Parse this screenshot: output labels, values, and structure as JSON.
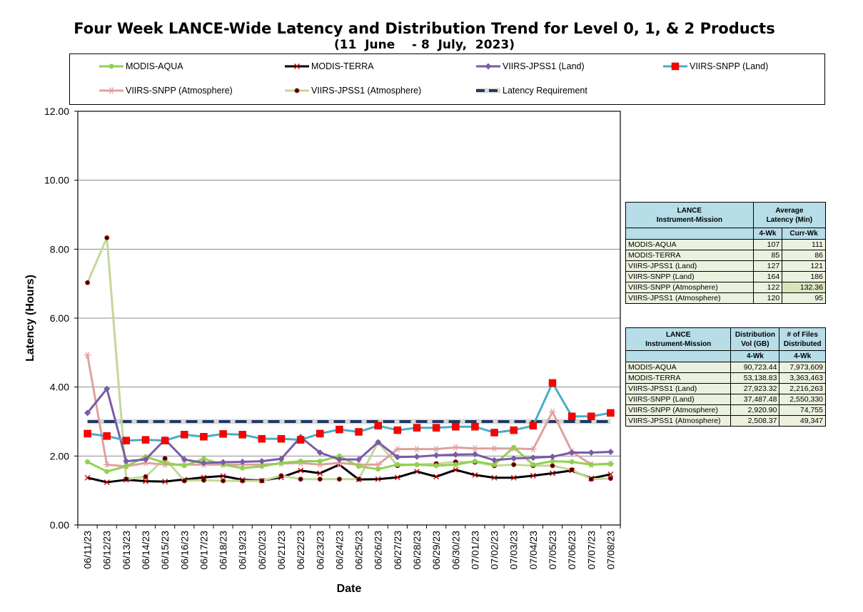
{
  "title": "Four Week LANCE-Wide Latency and Distribution Trend for Level 0, 1, & 2 Products",
  "subtitle": "(11  June    - 8  July,  2023)",
  "chart_data": {
    "type": "line",
    "xlabel": "Date",
    "ylabel": "Latency (Hours)",
    "ylim": [
      0,
      12
    ],
    "yticks": [
      "0.00",
      "2.00",
      "4.00",
      "6.00",
      "8.00",
      "10.00",
      "12.00"
    ],
    "grid": true,
    "legend_position": "top",
    "categories": [
      "06/11/23",
      "06/12/23",
      "06/13/23",
      "06/14/23",
      "06/15/23",
      "06/16/23",
      "06/17/23",
      "06/18/23",
      "06/19/23",
      "06/20/23",
      "06/21/23",
      "06/22/23",
      "06/23/23",
      "06/24/23",
      "06/25/23",
      "06/26/23",
      "06/27/23",
      "06/28/23",
      "06/29/23",
      "06/30/23",
      "07/01/23",
      "07/02/23",
      "07/03/23",
      "07/04/23",
      "07/05/23",
      "07/06/23",
      "07/07/23",
      "07/08/23"
    ],
    "series": [
      {
        "name": "MODIS-AQUA",
        "color": "#92d050",
        "marker": "circle",
        "values": [
          1.83,
          1.55,
          1.7,
          1.98,
          1.8,
          1.72,
          1.92,
          1.75,
          1.65,
          1.7,
          1.8,
          1.85,
          1.85,
          2.0,
          1.7,
          1.62,
          1.75,
          1.75,
          1.72,
          1.75,
          1.85,
          1.75,
          2.25,
          1.75,
          1.85,
          1.83,
          1.75,
          1.77
        ]
      },
      {
        "name": "MODIS-TERRA",
        "color": "#000000",
        "marker": "x",
        "values": [
          1.37,
          1.24,
          1.31,
          1.27,
          1.26,
          1.32,
          1.38,
          1.42,
          1.31,
          1.29,
          1.38,
          1.58,
          1.5,
          1.75,
          1.32,
          1.33,
          1.38,
          1.55,
          1.4,
          1.6,
          1.45,
          1.37,
          1.37,
          1.43,
          1.5,
          1.58,
          1.35,
          1.47
        ]
      },
      {
        "name": "VIIRS-JPSS1 (Land)",
        "color": "#7a5ba6",
        "marker": "diamond",
        "values": [
          3.25,
          3.95,
          1.85,
          1.9,
          2.48,
          1.9,
          1.8,
          1.82,
          1.83,
          1.85,
          1.92,
          2.55,
          2.1,
          1.9,
          1.9,
          2.4,
          1.97,
          1.98,
          2.02,
          2.04,
          2.05,
          1.88,
          1.93,
          1.95,
          1.98,
          2.1,
          2.1,
          2.12
        ]
      },
      {
        "name": "VIIRS-SNPP (Land)",
        "color": "#4bacc6",
        "marker": "square",
        "values": [
          2.65,
          2.58,
          2.45,
          2.47,
          2.45,
          2.62,
          2.56,
          2.64,
          2.62,
          2.5,
          2.5,
          2.47,
          2.65,
          2.77,
          2.7,
          2.88,
          2.75,
          2.82,
          2.82,
          2.85,
          2.85,
          2.68,
          2.75,
          2.88,
          4.12,
          3.15,
          3.15,
          3.25
        ]
      },
      {
        "name": "VIIRS-SNPP (Atmosphere)",
        "color": "#e0a0a0",
        "marker": "asterisk",
        "values": [
          4.93,
          1.75,
          1.7,
          1.8,
          1.75,
          1.75,
          1.75,
          1.75,
          1.75,
          1.75,
          1.78,
          1.8,
          1.75,
          1.8,
          1.75,
          1.75,
          2.2,
          2.2,
          2.2,
          2.25,
          2.22,
          2.22,
          2.22,
          2.2,
          3.28,
          2.13,
          1.75,
          1.78
        ]
      },
      {
        "name": "VIIRS-JPSS1 (Atmosphere)",
        "color": "#c4d79b",
        "marker": "dot",
        "values": [
          7.03,
          8.33,
          1.33,
          1.4,
          1.93,
          1.28,
          1.3,
          1.28,
          1.28,
          1.28,
          1.43,
          1.33,
          1.33,
          1.33,
          1.33,
          2.4,
          1.72,
          1.75,
          1.78,
          1.83,
          1.82,
          1.72,
          1.75,
          1.72,
          1.72,
          1.6,
          1.33,
          1.35
        ]
      },
      {
        "name": "Latency Requirement",
        "color": "#1f3864",
        "marker": "none",
        "dashed": true,
        "values": [
          3,
          3,
          3,
          3,
          3,
          3,
          3,
          3,
          3,
          3,
          3,
          3,
          3,
          3,
          3,
          3,
          3,
          3,
          3,
          3,
          3,
          3,
          3,
          3,
          3,
          3,
          3,
          3
        ]
      }
    ]
  },
  "latency_table": {
    "header_instrument": [
      "LANCE",
      "Instrument-Mission"
    ],
    "header_avg": [
      "Average",
      "Latency (Min)"
    ],
    "col_4wk": "4-Wk",
    "col_curr": "Curr-Wk",
    "rows": [
      {
        "name": "MODIS-AQUA",
        "wk4": "107",
        "curr": "111"
      },
      {
        "name": "MODIS-TERRA",
        "wk4": "85",
        "curr": "86"
      },
      {
        "name": "VIIRS-JPSS1 (Land)",
        "wk4": "127",
        "curr": "121"
      },
      {
        "name": "VIIRS-SNPP (Land)",
        "wk4": "164",
        "curr": "186"
      },
      {
        "name": "VIIRS-SNPP (Atmosphere)",
        "wk4": "122",
        "curr": "132.36"
      },
      {
        "name": "VIIRS-JPSS1 (Atmosphere)",
        "wk4": "120",
        "curr": "95"
      }
    ]
  },
  "distribution_table": {
    "header_instrument": [
      "LANCE",
      "Instrument-Mission"
    ],
    "header_vol": [
      "Distribution",
      "Vol (GB)"
    ],
    "header_files": [
      "# of Files",
      "Distributed"
    ],
    "col_4wk": "4-Wk",
    "rows": [
      {
        "name": "MODIS-AQUA",
        "vol": "90,723.44",
        "files": "7,973,609"
      },
      {
        "name": "MODIS-TERRA",
        "vol": "53,138.83",
        "files": "3,363,463"
      },
      {
        "name": "VIIRS-JPSS1 (Land)",
        "vol": "27,923.32",
        "files": "2,216,263"
      },
      {
        "name": "VIIRS-SNPP (Land)",
        "vol": "37,487.48",
        "files": "2,550,330"
      },
      {
        "name": "VIIRS-SNPP (Atmosphere)",
        "vol": "2,920.90",
        "files": "74,755"
      },
      {
        "name": "VIIRS-JPSS1 (Atmosphere)",
        "vol": "2,508.37",
        "files": "49,347"
      }
    ]
  }
}
